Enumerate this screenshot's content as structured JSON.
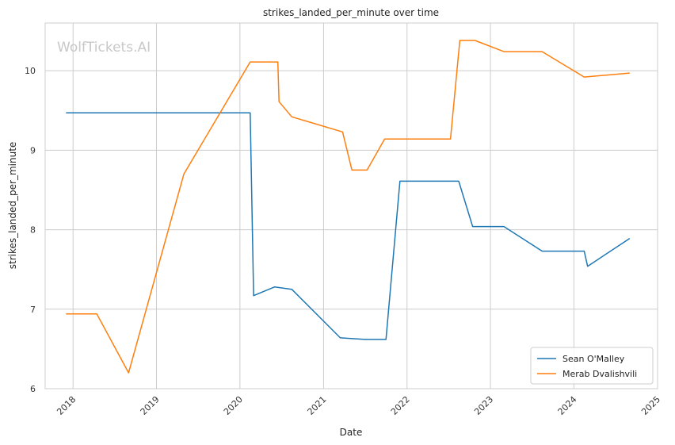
{
  "chart_data": {
    "type": "line",
    "title": "strikes_landed_per_minute over time",
    "xlabel": "Date",
    "ylabel": "strikes_landed_per_minute",
    "watermark": "WolfTickets.AI",
    "xlim": [
      "2017-09-01",
      "2025-01-01"
    ],
    "ylim": [
      6,
      10.6
    ],
    "x_ticks": [
      "2018",
      "2019",
      "2020",
      "2021",
      "2022",
      "2023",
      "2024",
      "2025"
    ],
    "y_ticks": [
      "6",
      "7",
      "8",
      "9",
      "10"
    ],
    "grid": true,
    "legend_position": "bottom-right",
    "series": [
      {
        "name": "Sean O'Malley",
        "color": "#1f77b4",
        "points": [
          [
            "2017-12-01",
            9.47
          ],
          [
            "2020-02-15",
            9.47
          ],
          [
            "2020-03-01",
            7.17
          ],
          [
            "2020-06-01",
            7.28
          ],
          [
            "2020-08-15",
            7.25
          ],
          [
            "2021-03-15",
            6.64
          ],
          [
            "2021-07-01",
            6.62
          ],
          [
            "2021-10-01",
            6.62
          ],
          [
            "2021-12-01",
            8.61
          ],
          [
            "2022-08-15",
            8.61
          ],
          [
            "2022-10-15",
            8.04
          ],
          [
            "2023-03-01",
            8.04
          ],
          [
            "2023-08-15",
            7.73
          ],
          [
            "2024-02-15",
            7.73
          ],
          [
            "2024-03-01",
            7.54
          ],
          [
            "2024-09-01",
            7.89
          ]
        ]
      },
      {
        "name": "Merab Dvalishvili",
        "color": "#ff7f0e",
        "points": [
          [
            "2017-12-01",
            6.94
          ],
          [
            "2018-04-15",
            6.94
          ],
          [
            "2018-09-01",
            6.2
          ],
          [
            "2019-05-01",
            8.7
          ],
          [
            "2020-02-15",
            10.11
          ],
          [
            "2020-06-15",
            10.11
          ],
          [
            "2020-06-20",
            9.61
          ],
          [
            "2020-08-15",
            9.42
          ],
          [
            "2021-03-25",
            9.23
          ],
          [
            "2021-05-05",
            8.75
          ],
          [
            "2021-07-10",
            8.75
          ],
          [
            "2021-09-25",
            9.14
          ],
          [
            "2022-07-10",
            9.14
          ],
          [
            "2022-08-20",
            10.38
          ],
          [
            "2022-10-25",
            10.38
          ],
          [
            "2023-03-01",
            10.24
          ],
          [
            "2023-08-15",
            10.24
          ],
          [
            "2024-02-15",
            9.92
          ],
          [
            "2024-09-01",
            9.97
          ]
        ]
      }
    ]
  }
}
